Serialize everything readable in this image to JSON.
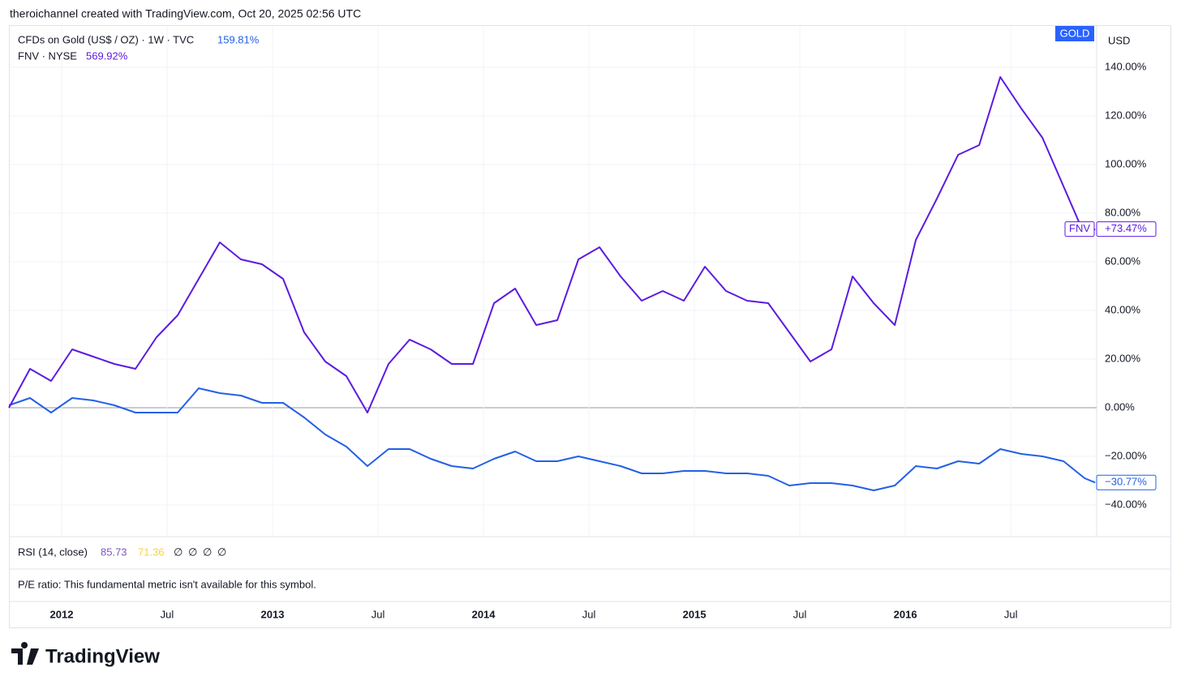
{
  "header": "theroichannel created with TradingView.com, Oct 20, 2025 02:56 UTC",
  "currency": "USD",
  "rsi_panel": {
    "label": "RSI (14, close)",
    "values": [
      "85.73",
      "71.36"
    ],
    "placeholders": [
      "∅",
      "∅",
      "∅",
      "∅"
    ]
  },
  "pe_panel": "P/E ratio: This fundamental metric isn't available for this symbol.",
  "brand": "TradingView",
  "chart_data": {
    "type": "line",
    "x": [
      2011.75,
      2011.85,
      2011.95,
      2012.05,
      2012.15,
      2012.25,
      2012.35,
      2012.45,
      2012.55,
      2012.65,
      2012.75,
      2012.85,
      2012.95,
      2013.05,
      2013.15,
      2013.25,
      2013.35,
      2013.45,
      2013.55,
      2013.65,
      2013.75,
      2013.85,
      2013.95,
      2014.05,
      2014.15,
      2014.25,
      2014.35,
      2014.45,
      2014.55,
      2014.65,
      2014.75,
      2014.85,
      2014.95,
      2015.05,
      2015.15,
      2015.25,
      2015.35,
      2015.45,
      2015.55,
      2015.65,
      2015.75,
      2015.85,
      2015.95,
      2016.05,
      2016.15,
      2016.25,
      2016.35,
      2016.45,
      2016.55,
      2016.65,
      2016.75,
      2016.85,
      2016.9
    ],
    "series": [
      {
        "name": "CFDs on Gold (US$ / OZ) · 1W · TVC",
        "legend_value": "159.81%",
        "badge": "GOLD",
        "end_label": "−30.77%",
        "color": "#2360e6",
        "values": [
          1,
          4,
          -2,
          4,
          3,
          1,
          -2,
          -2,
          -2,
          8,
          6,
          5,
          2,
          2,
          -4,
          -11,
          -16,
          -24,
          -17,
          -17,
          -21,
          -24,
          -25,
          -21,
          -18,
          -22,
          -22,
          -20,
          -22,
          -24,
          -27,
          -27,
          -26,
          -26,
          -27,
          -27,
          -28,
          -32,
          -31,
          -31,
          -32,
          -34,
          -32,
          -24,
          -25,
          -22,
          -23,
          -17,
          -19,
          -20,
          -22,
          -29,
          -30.77
        ]
      },
      {
        "name": "FNV · NYSE",
        "legend_value": "569.92%",
        "badge": "FNV",
        "end_label": "+73.47%",
        "color": "#5d1ae0",
        "values": [
          0,
          16,
          11,
          24,
          21,
          18,
          16,
          29,
          38,
          53,
          68,
          61,
          59,
          53,
          31,
          19,
          13,
          -2,
          18,
          28,
          24,
          18,
          18,
          43,
          49,
          34,
          36,
          61,
          66,
          54,
          44,
          48,
          44,
          58,
          48,
          44,
          43,
          31,
          19,
          24,
          54,
          43,
          34,
          69,
          86,
          104,
          108,
          136,
          123,
          111,
          91,
          71,
          73.47
        ]
      }
    ],
    "xlim": [
      2011.754,
      2016.907
    ],
    "xticks": [
      {
        "value": 2012,
        "label": "2012"
      },
      {
        "value": 2012.5,
        "label": "Jul"
      },
      {
        "value": 2013,
        "label": "2013"
      },
      {
        "value": 2013.5,
        "label": "Jul"
      },
      {
        "value": 2014,
        "label": "2014"
      },
      {
        "value": 2014.5,
        "label": "Jul"
      },
      {
        "value": 2015,
        "label": "2015"
      },
      {
        "value": 2015.5,
        "label": "Jul"
      },
      {
        "value": 2016,
        "label": "2016"
      },
      {
        "value": 2016.5,
        "label": "Jul"
      }
    ],
    "ylim": [
      -53,
      157
    ],
    "yticks": [
      {
        "value": -40,
        "label": "−40.00%"
      },
      {
        "value": -20,
        "label": "−20.00%"
      },
      {
        "value": 0,
        "label": "0.00%"
      },
      {
        "value": 20,
        "label": "20.00%"
      },
      {
        "value": 40,
        "label": "40.00%"
      },
      {
        "value": 60,
        "label": "60.00%"
      },
      {
        "value": 80,
        "label": "80.00%"
      },
      {
        "value": 100,
        "label": "100.00%"
      },
      {
        "value": 120,
        "label": "120.00%"
      },
      {
        "value": 140,
        "label": "140.00%"
      }
    ],
    "grid": true
  }
}
